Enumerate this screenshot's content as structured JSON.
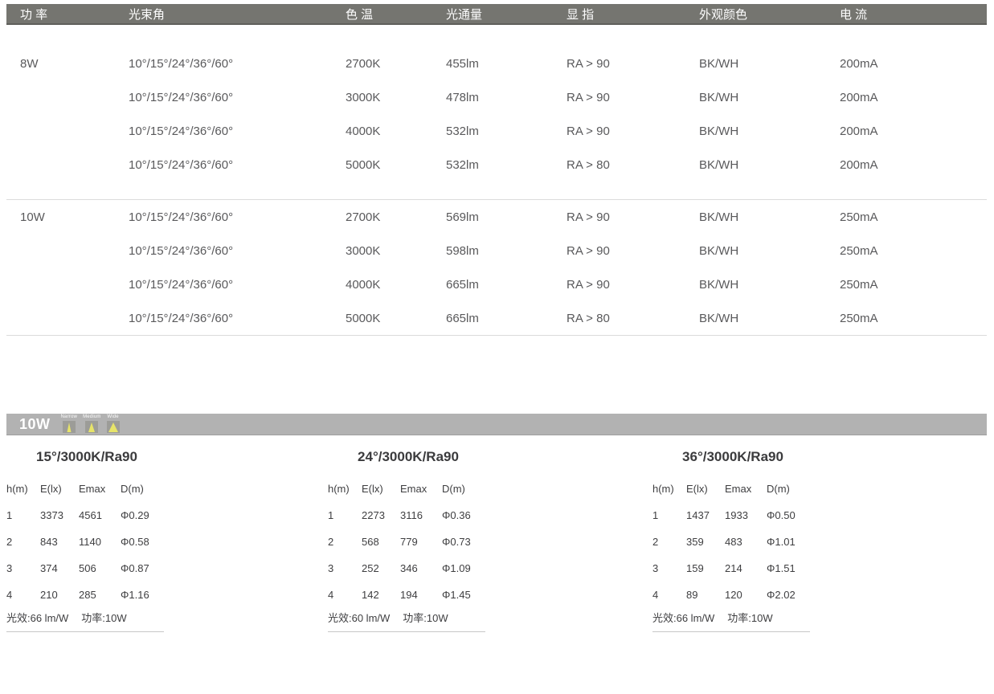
{
  "colors": {
    "header_bar_bg": "#757570",
    "header_bar_border": "#5f5f5b",
    "body_text": "#59595b",
    "divider": "#dbdbdb",
    "photo_bar_bg": "#b2b2b2",
    "beam_box_bg": "#9c9c98",
    "beam_triangle": "#e7e469",
    "mini_table_text": "#3e3e40"
  },
  "spec_table": {
    "headers": [
      "功 率",
      "光束角",
      "色 温",
      "光通量",
      "显 指",
      "外观颜色",
      "电 流"
    ],
    "groups": [
      {
        "power": "8W",
        "rows": [
          {
            "beam_angle": "10°/15°/24°/36°/60°",
            "cct": "2700K",
            "flux": "455lm",
            "cri": "RA > 90",
            "finish": "BK/WH",
            "current": "200mA"
          },
          {
            "beam_angle": "10°/15°/24°/36°/60°",
            "cct": "3000K",
            "flux": "478lm",
            "cri": "RA > 90",
            "finish": "BK/WH",
            "current": "200mA"
          },
          {
            "beam_angle": "10°/15°/24°/36°/60°",
            "cct": "4000K",
            "flux": "532lm",
            "cri": "RA > 90",
            "finish": "BK/WH",
            "current": "200mA"
          },
          {
            "beam_angle": "10°/15°/24°/36°/60°",
            "cct": "5000K",
            "flux": "532lm",
            "cri": "RA > 80",
            "finish": "BK/WH",
            "current": "200mA"
          }
        ]
      },
      {
        "power": "10W",
        "rows": [
          {
            "beam_angle": "10°/15°/24°/36°/60°",
            "cct": "2700K",
            "flux": "569lm",
            "cri": "RA > 90",
            "finish": "BK/WH",
            "current": "250mA"
          },
          {
            "beam_angle": "10°/15°/24°/36°/60°",
            "cct": "3000K",
            "flux": "598lm",
            "cri": "RA > 90",
            "finish": "BK/WH",
            "current": "250mA"
          },
          {
            "beam_angle": "10°/15°/24°/36°/60°",
            "cct": "4000K",
            "flux": "665lm",
            "cri": "RA > 90",
            "finish": "BK/WH",
            "current": "250mA"
          },
          {
            "beam_angle": "10°/15°/24°/36°/60°",
            "cct": "5000K",
            "flux": "665lm",
            "cri": "RA > 80",
            "finish": "BK/WH",
            "current": "250mA"
          }
        ]
      }
    ]
  },
  "photometry": {
    "bar_power": "10W",
    "beam_icons": [
      {
        "label": "Narrow"
      },
      {
        "label": "Medium"
      },
      {
        "label": "Wide"
      }
    ],
    "tables": [
      {
        "title": "15°/3000K/Ra90",
        "headers": [
          "h(m)",
          "E(lx)",
          "Emax",
          "D(m)"
        ],
        "rows": [
          [
            "1",
            "3373",
            "4561",
            "Φ0.29"
          ],
          [
            "2",
            "843",
            "1140",
            "Φ0.58"
          ],
          [
            "3",
            "374",
            "506",
            "Φ0.87"
          ],
          [
            "4",
            "210",
            "285",
            "Φ1.16"
          ]
        ],
        "efficacy": "光效:66 lm/W",
        "power": "功率:10W"
      },
      {
        "title": "24°/3000K/Ra90",
        "headers": [
          "h(m)",
          "E(lx)",
          "Emax",
          "D(m)"
        ],
        "rows": [
          [
            "1",
            "2273",
            "3116",
            "Φ0.36"
          ],
          [
            "2",
            "568",
            "779",
            "Φ0.73"
          ],
          [
            "3",
            "252",
            "346",
            "Φ1.09"
          ],
          [
            "4",
            "142",
            "194",
            "Φ1.45"
          ]
        ],
        "efficacy": "光效:60 lm/W",
        "power": "功率:10W"
      },
      {
        "title": "36°/3000K/Ra90",
        "headers": [
          "h(m)",
          "E(lx)",
          "Emax",
          "D(m)"
        ],
        "rows": [
          [
            "1",
            "1437",
            "1933",
            "Φ0.50"
          ],
          [
            "2",
            "359",
            "483",
            "Φ1.01"
          ],
          [
            "3",
            "159",
            "214",
            "Φ1.51"
          ],
          [
            "4",
            "89",
            "120",
            "Φ2.02"
          ]
        ],
        "efficacy": "光效:66 lm/W",
        "power": "功率:10W"
      }
    ]
  }
}
